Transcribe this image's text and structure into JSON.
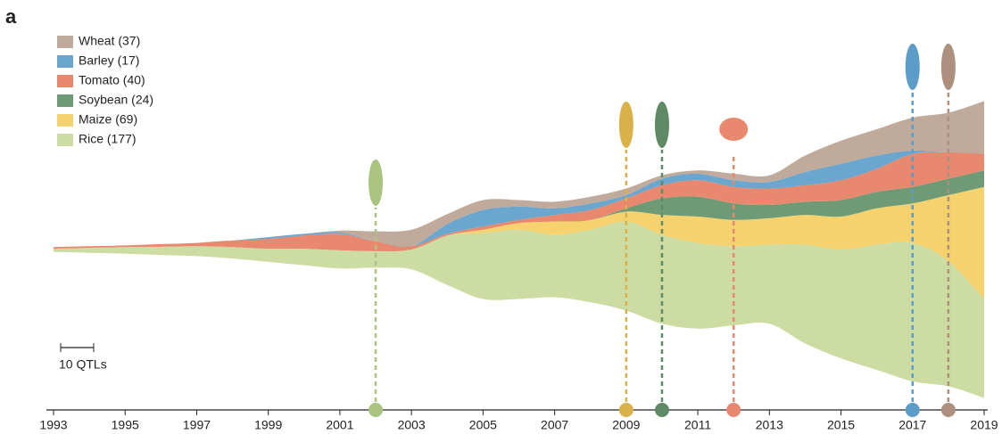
{
  "chart_data": {
    "type": "stream",
    "panel_label": "a",
    "x": [
      1993,
      1994,
      1995,
      1996,
      1997,
      1998,
      1999,
      2000,
      2001,
      2002,
      2003,
      2004,
      2005,
      2006,
      2007,
      2008,
      2009,
      2010,
      2011,
      2012,
      2013,
      2014,
      2015,
      2016,
      2017,
      2018,
      2019
    ],
    "series": [
      {
        "name": "Wheat (37)",
        "color": "#c0aa9c",
        "values": [
          0,
          0,
          0,
          0,
          0,
          0,
          0,
          0,
          0.5,
          3,
          5,
          3,
          3,
          2,
          2,
          2,
          2,
          1,
          1,
          2,
          2,
          5,
          7,
          8,
          10,
          12,
          16
        ]
      },
      {
        "name": "Barley (17)",
        "color": "#6aa6cd",
        "values": [
          0,
          0,
          0,
          0,
          0,
          0,
          0.5,
          0.5,
          0.5,
          0,
          0,
          3,
          5,
          4,
          2,
          2,
          1,
          2,
          2,
          2,
          2,
          4,
          5,
          4,
          1,
          0,
          0
        ]
      },
      {
        "name": "Tomato (40)",
        "color": "#e8896f",
        "values": [
          0.5,
          0.5,
          0.5,
          0.8,
          1,
          2,
          3,
          4,
          5,
          3,
          1,
          0.5,
          1,
          1,
          2,
          3,
          3,
          4,
          5,
          5,
          5,
          5,
          6,
          7,
          10,
          8,
          5
        ]
      },
      {
        "name": "Soybean (24)",
        "color": "#6e9a76",
        "values": [
          0,
          0,
          0,
          0,
          0,
          0,
          0,
          0,
          0,
          0,
          0,
          0,
          0,
          0,
          0,
          0,
          1,
          5,
          6,
          5,
          4,
          4,
          5,
          5,
          5,
          5,
          5
        ]
      },
      {
        "name": "Maize (69)",
        "color": "#f6d26e",
        "values": [
          0,
          0,
          0,
          0,
          0,
          0,
          0,
          0,
          0,
          0,
          0,
          0,
          1,
          2,
          4,
          3,
          3,
          6,
          8,
          8,
          8,
          9,
          10,
          11,
          12,
          20,
          34
        ]
      },
      {
        "name": "Rice (177)",
        "color": "#cddca2",
        "values": [
          1,
          1.5,
          2,
          2.5,
          3,
          3.5,
          4,
          5,
          5.5,
          5,
          6,
          15,
          20,
          21,
          19,
          22,
          27,
          27,
          26,
          24,
          24,
          30,
          33,
          38,
          42,
          38,
          30
        ]
      }
    ],
    "xlim": [
      1993,
      2019
    ],
    "xticks": [
      1993,
      1995,
      1997,
      1999,
      2001,
      2003,
      2005,
      2007,
      2009,
      2011,
      2013,
      2015,
      2017,
      2019
    ],
    "scale_bar": {
      "value": 10,
      "label": "10 QTLs"
    },
    "events": [
      {
        "x": 2002,
        "color": "#a9c47f"
      },
      {
        "x": 2009,
        "color": "#d9b04a"
      },
      {
        "x": 2010,
        "color": "#5f8a64"
      },
      {
        "x": 2012,
        "color": "#e8896f"
      },
      {
        "x": 2017,
        "color": "#5b9cc8"
      },
      {
        "x": 2018,
        "color": "#ad8f7d"
      }
    ]
  }
}
